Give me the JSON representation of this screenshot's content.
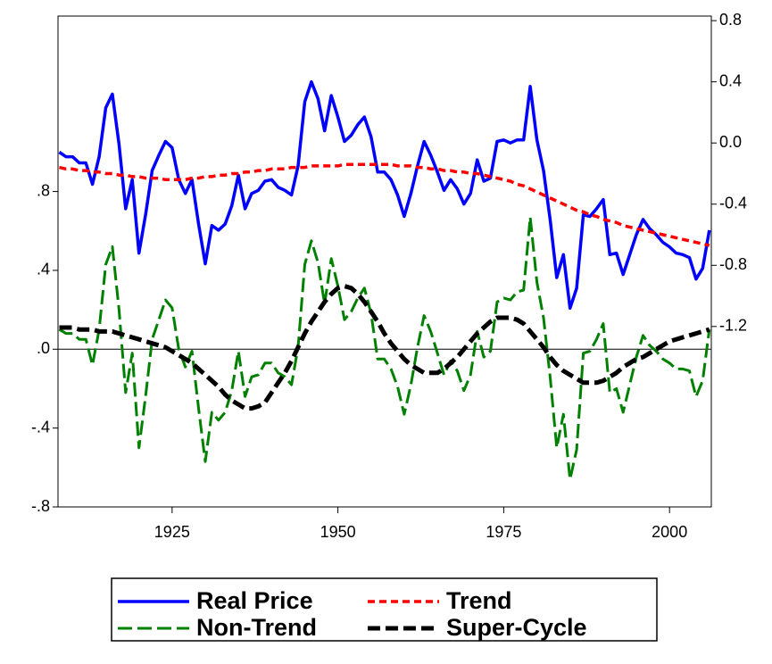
{
  "chart_data": {
    "type": "line",
    "x": [
      1908,
      1909,
      1910,
      1911,
      1912,
      1913,
      1914,
      1915,
      1916,
      1917,
      1918,
      1919,
      1920,
      1921,
      1922,
      1923,
      1924,
      1925,
      1926,
      1927,
      1928,
      1929,
      1930,
      1931,
      1932,
      1933,
      1934,
      1935,
      1936,
      1937,
      1938,
      1939,
      1940,
      1941,
      1942,
      1943,
      1944,
      1945,
      1946,
      1947,
      1948,
      1949,
      1950,
      1951,
      1952,
      1953,
      1954,
      1955,
      1956,
      1957,
      1958,
      1959,
      1960,
      1961,
      1962,
      1963,
      1964,
      1965,
      1966,
      1967,
      1968,
      1969,
      1970,
      1971,
      1972,
      1973,
      1974,
      1975,
      1976,
      1977,
      1978,
      1979,
      1980,
      1981,
      1982,
      1983,
      1984,
      1985,
      1986,
      1987,
      1988,
      1989,
      1990,
      1991,
      1992,
      1993,
      1994,
      1995,
      1996,
      1997,
      1998,
      1999,
      2000,
      2001,
      2002,
      2003,
      2004,
      2005,
      2006
    ],
    "series": [
      {
        "name": "Real Price",
        "color": "#0000ff",
        "style": "solid",
        "axis": "y2",
        "values": [
          -0.06,
          -0.09,
          -0.09,
          -0.13,
          -0.13,
          -0.27,
          -0.09,
          0.23,
          0.32,
          -0.01,
          -0.43,
          -0.24,
          -0.72,
          -0.47,
          -0.18,
          -0.08,
          0.01,
          -0.03,
          -0.24,
          -0.33,
          -0.24,
          -0.53,
          -0.79,
          -0.54,
          -0.57,
          -0.53,
          -0.41,
          -0.21,
          -0.43,
          -0.33,
          -0.31,
          -0.25,
          -0.24,
          -0.29,
          -0.31,
          -0.34,
          -0.15,
          0.27,
          0.4,
          0.29,
          0.08,
          0.31,
          0.17,
          0.01,
          0.05,
          0.12,
          0.17,
          0.04,
          -0.19,
          -0.19,
          -0.24,
          -0.34,
          -0.48,
          -0.33,
          -0.15,
          0.01,
          -0.08,
          -0.19,
          -0.31,
          -0.24,
          -0.3,
          -0.4,
          -0.33,
          -0.11,
          -0.25,
          -0.23,
          0.01,
          0.02,
          0.0,
          0.02,
          0.02,
          0.37,
          0.02,
          -0.18,
          -0.5,
          -0.88,
          -0.73,
          -1.08,
          -0.95,
          -0.47,
          -0.48,
          -0.43,
          -0.37,
          -0.73,
          -0.72,
          -0.86,
          -0.73,
          -0.6,
          -0.5,
          -0.56,
          -0.6,
          -0.65,
          -0.68,
          -0.72,
          -0.73,
          -0.75,
          -0.89,
          -0.82,
          -0.57
        ]
      },
      {
        "name": "Trend",
        "color": "#ff0000",
        "style": "short-dash",
        "axis": "y2",
        "values": [
          -0.16,
          -0.17,
          -0.17,
          -0.18,
          -0.18,
          -0.19,
          -0.19,
          -0.2,
          -0.2,
          -0.21,
          -0.21,
          -0.22,
          -0.22,
          -0.23,
          -0.23,
          -0.23,
          -0.24,
          -0.24,
          -0.24,
          -0.24,
          -0.23,
          -0.23,
          -0.22,
          -0.22,
          -0.21,
          -0.21,
          -0.2,
          -0.2,
          -0.19,
          -0.19,
          -0.18,
          -0.18,
          -0.17,
          -0.17,
          -0.17,
          -0.16,
          -0.16,
          -0.16,
          -0.15,
          -0.15,
          -0.15,
          -0.15,
          -0.15,
          -0.14,
          -0.14,
          -0.14,
          -0.14,
          -0.14,
          -0.14,
          -0.14,
          -0.14,
          -0.15,
          -0.15,
          -0.15,
          -0.16,
          -0.16,
          -0.17,
          -0.17,
          -0.18,
          -0.18,
          -0.19,
          -0.19,
          -0.2,
          -0.2,
          -0.21,
          -0.22,
          -0.23,
          -0.24,
          -0.25,
          -0.27,
          -0.28,
          -0.3,
          -0.32,
          -0.34,
          -0.36,
          -0.38,
          -0.4,
          -0.42,
          -0.44,
          -0.45,
          -0.47,
          -0.48,
          -0.5,
          -0.51,
          -0.52,
          -0.54,
          -0.55,
          -0.56,
          -0.57,
          -0.58,
          -0.59,
          -0.6,
          -0.61,
          -0.62,
          -0.63,
          -0.64,
          -0.65,
          -0.66,
          -0.67
        ]
      },
      {
        "name": "Non-Trend",
        "color": "#008000",
        "style": "long-dash",
        "values": [
          0.1,
          0.08,
          0.08,
          0.05,
          0.05,
          -0.08,
          0.1,
          0.43,
          0.52,
          0.2,
          -0.22,
          -0.02,
          -0.5,
          -0.24,
          0.05,
          0.15,
          0.25,
          0.21,
          0.0,
          -0.09,
          -0.01,
          -0.3,
          -0.57,
          -0.32,
          -0.36,
          -0.32,
          -0.21,
          -0.01,
          -0.24,
          -0.14,
          -0.13,
          -0.07,
          -0.07,
          -0.12,
          -0.14,
          -0.18,
          0.01,
          0.43,
          0.55,
          0.44,
          0.23,
          0.46,
          0.32,
          0.15,
          0.19,
          0.26,
          0.31,
          0.18,
          -0.05,
          -0.05,
          -0.1,
          -0.19,
          -0.33,
          -0.18,
          0.01,
          0.17,
          0.09,
          -0.02,
          -0.13,
          -0.06,
          -0.11,
          -0.21,
          -0.13,
          0.09,
          -0.04,
          -0.01,
          0.24,
          0.26,
          0.25,
          0.29,
          0.3,
          0.67,
          0.34,
          0.16,
          -0.14,
          -0.5,
          -0.33,
          -0.66,
          -0.51,
          -0.02,
          -0.01,
          0.05,
          0.13,
          -0.22,
          -0.2,
          -0.32,
          -0.18,
          -0.04,
          0.07,
          0.02,
          -0.01,
          -0.05,
          -0.07,
          -0.1,
          -0.1,
          -0.11,
          -0.24,
          -0.16,
          0.1
        ]
      },
      {
        "name": "Super-Cycle",
        "color": "#000000",
        "style": "bold-dash",
        "values": [
          0.11,
          0.11,
          0.11,
          0.1,
          0.1,
          0.1,
          0.09,
          0.09,
          0.09,
          0.08,
          0.07,
          0.06,
          0.05,
          0.04,
          0.03,
          0.02,
          0.01,
          -0.01,
          -0.03,
          -0.05,
          -0.07,
          -0.1,
          -0.13,
          -0.16,
          -0.19,
          -0.23,
          -0.26,
          -0.28,
          -0.3,
          -0.3,
          -0.29,
          -0.27,
          -0.22,
          -0.17,
          -0.12,
          -0.06,
          0.01,
          0.08,
          0.14,
          0.19,
          0.24,
          0.28,
          0.31,
          0.32,
          0.31,
          0.28,
          0.24,
          0.19,
          0.14,
          0.08,
          0.03,
          -0.01,
          -0.05,
          -0.08,
          -0.1,
          -0.12,
          -0.12,
          -0.12,
          -0.1,
          -0.07,
          -0.04,
          0.0,
          0.04,
          0.08,
          0.11,
          0.14,
          0.16,
          0.16,
          0.16,
          0.15,
          0.13,
          0.09,
          0.05,
          0.01,
          -0.04,
          -0.08,
          -0.11,
          -0.13,
          -0.15,
          -0.17,
          -0.17,
          -0.17,
          -0.16,
          -0.14,
          -0.12,
          -0.09,
          -0.07,
          -0.05,
          -0.04,
          -0.02,
          0.0,
          0.02,
          0.04,
          0.05,
          0.06,
          0.07,
          0.08,
          0.09,
          0.1
        ]
      }
    ],
    "xlim": [
      1907.8,
      2006.3
    ],
    "xticks": [
      1925,
      1950,
      1975,
      2000
    ],
    "ylim": [
      -0.8,
      1.69
    ],
    "yticks": [
      {
        "value": -0.8,
        "label": "-.8"
      },
      {
        "value": -0.4,
        "label": "-.4"
      },
      {
        "value": 0,
        "label": ".0"
      },
      {
        "value": 0.4,
        "label": ".4"
      },
      {
        "value": 0.8,
        "label": ".8"
      }
    ],
    "y2lim": [
      -2.38,
      0.83
    ],
    "y2ticks": [
      -1.2,
      -0.8,
      -0.4,
      {
        "value": 0,
        "label": "0.0"
      },
      0.4,
      0.8
    ],
    "zero_line": true,
    "legend": "bottom"
  }
}
